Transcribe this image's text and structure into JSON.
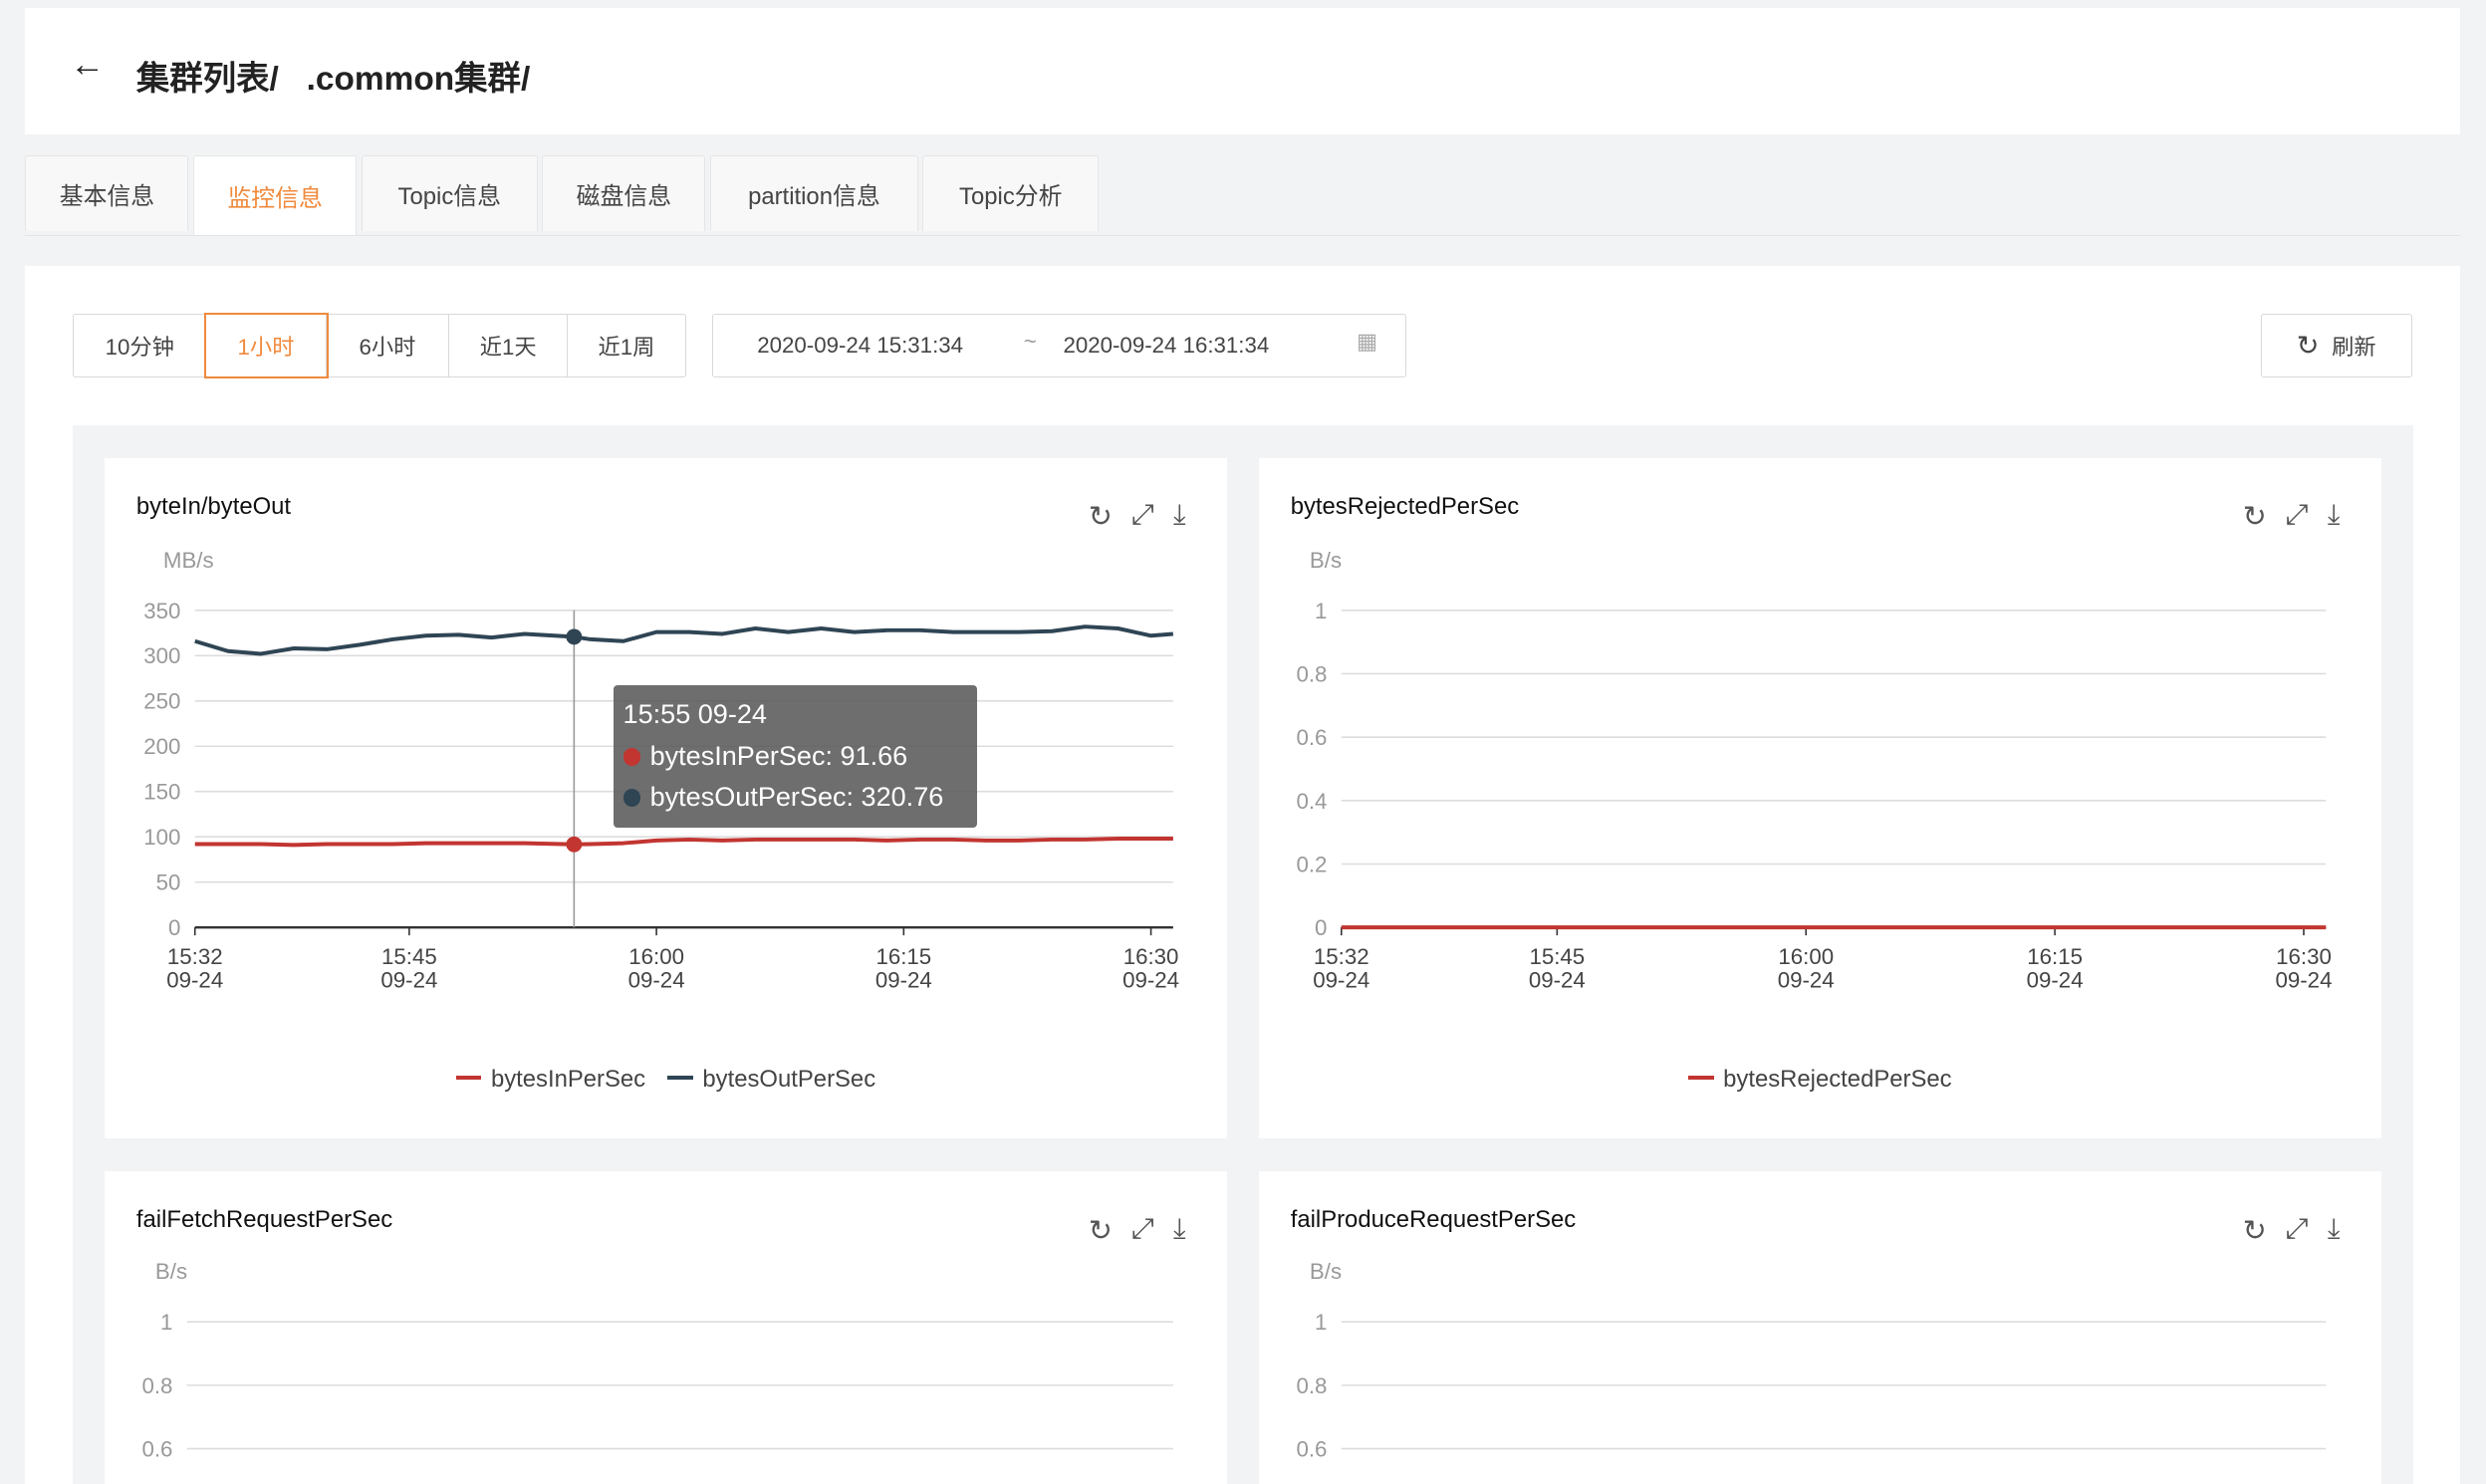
{
  "header": {
    "back_icon": "arrow-left-icon",
    "breadcrumb": "集群列表/   .common集群/"
  },
  "tabs": [
    {
      "label": "基本信息"
    },
    {
      "label": "监控信息",
      "active": true
    },
    {
      "label": "Topic信息"
    },
    {
      "label": "磁盘信息"
    },
    {
      "label": "partition信息"
    },
    {
      "label": "Topic分析"
    }
  ],
  "toolbar": {
    "ranges": [
      {
        "label": "10分钟"
      },
      {
        "label": "1小时",
        "active": true
      },
      {
        "label": "6小时"
      },
      {
        "label": "近1天"
      },
      {
        "label": "近1周"
      }
    ],
    "start": "2020-09-24 15:31:34",
    "sep": "~",
    "end": "2020-09-24 16:31:34",
    "calendar_icon": "calendar-icon",
    "refresh_label": "刷新",
    "refresh_icon": "refresh-icon"
  },
  "colors": {
    "accent": "#f08a3c",
    "in": "#c23531",
    "out": "#2f4554"
  },
  "chart_data": [
    {
      "type": "line",
      "title": "byteIn/byteOut",
      "ylabel": "MB/s",
      "ylim": [
        0,
        350
      ],
      "yticks": [
        "0",
        "50",
        "100",
        "150",
        "200",
        "250",
        "300",
        "350"
      ],
      "xticks": [
        {
          "time": "15:32",
          "date": "09-24"
        },
        {
          "time": "15:45",
          "date": "09-24"
        },
        {
          "time": "16:00",
          "date": "09-24"
        },
        {
          "time": "16:15",
          "date": "09-24"
        },
        {
          "time": "16:30",
          "date": "09-24"
        }
      ],
      "x": [
        "15:32",
        "15:34",
        "15:36",
        "15:38",
        "15:40",
        "15:42",
        "15:44",
        "15:46",
        "15:48",
        "15:50",
        "15:52",
        "15:55",
        "15:56",
        "15:58",
        "16:00",
        "16:02",
        "16:04",
        "16:06",
        "16:08",
        "16:10",
        "16:12",
        "16:14",
        "16:16",
        "16:18",
        "16:20",
        "16:22",
        "16:24",
        "16:26",
        "16:28",
        "16:30",
        "16:31"
      ],
      "series": [
        {
          "name": "bytesInPerSec",
          "values": [
            92,
            92,
            92,
            91,
            92,
            92,
            92,
            93,
            93,
            93,
            93,
            91.66,
            92,
            93,
            96,
            97,
            96,
            97,
            97,
            97,
            97,
            96,
            97,
            97,
            96,
            96,
            97,
            97,
            98,
            98,
            98
          ]
        },
        {
          "name": "bytesOutPerSec",
          "values": [
            316,
            305,
            302,
            308,
            307,
            312,
            318,
            322,
            323,
            320,
            324,
            320.76,
            318,
            316,
            326,
            326,
            324,
            330,
            326,
            330,
            326,
            328,
            328,
            326,
            326,
            326,
            327,
            332,
            330,
            322,
            324
          ]
        }
      ],
      "tooltip": {
        "title": "15:55 09-24",
        "rows": [
          "bytesInPerSec: 91.66",
          "bytesOutPerSec: 320.76"
        ]
      },
      "legend": "bottom"
    },
    {
      "type": "line",
      "title": "bytesRejectedPerSec",
      "ylabel": "B/s",
      "ylim": [
        0,
        1
      ],
      "yticks": [
        "0",
        "0.2",
        "0.4",
        "0.6",
        "0.8",
        "1"
      ],
      "xticks": [
        {
          "time": "15:32",
          "date": "09-24"
        },
        {
          "time": "15:45",
          "date": "09-24"
        },
        {
          "time": "16:00",
          "date": "09-24"
        },
        {
          "time": "16:15",
          "date": "09-24"
        },
        {
          "time": "16:30",
          "date": "09-24"
        }
      ],
      "x": [
        "15:32",
        "16:31"
      ],
      "series": [
        {
          "name": "bytesRejectedPerSec",
          "values": [
            0,
            0
          ]
        }
      ],
      "legend": "bottom"
    },
    {
      "type": "line",
      "title": "failFetchRequestPerSec",
      "ylabel": "B/s",
      "ylim": [
        0,
        1
      ],
      "yticks": [
        "0.6",
        "0.8",
        "1"
      ]
    },
    {
      "type": "line",
      "title": "failProduceRequestPerSec",
      "ylabel": "B/s",
      "ylim": [
        0,
        1
      ],
      "yticks": [
        "0.6",
        "0.8",
        "1"
      ]
    }
  ],
  "card_icons": [
    "refresh-icon",
    "fullscreen-icon",
    "download-icon"
  ]
}
